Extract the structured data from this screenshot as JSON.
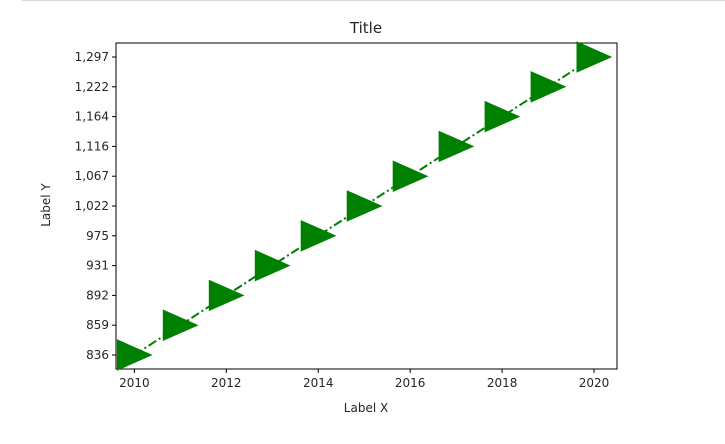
{
  "chart_data": {
    "type": "line",
    "title": "Title",
    "xlabel": "Label X",
    "ylabel": "Label Y",
    "x": [
      2010,
      2011,
      2012,
      2013,
      2014,
      2015,
      2016,
      2017,
      2018,
      2019,
      2020
    ],
    "series": [
      {
        "values": [
          836,
          859,
          892,
          931,
          975,
          1022,
          1067,
          1116,
          1164,
          1222,
          1297
        ],
        "color": "#008000",
        "line_style": "dash-dot",
        "marker": "triangle-right"
      }
    ],
    "xticks": [
      "2010",
      "2012",
      "2014",
      "2016",
      "2018",
      "2020"
    ],
    "yticks": [
      "836",
      "859",
      "892",
      "931",
      "975",
      "1,022",
      "1,067",
      "1,116",
      "1,164",
      "1,222",
      "1,297"
    ],
    "xlim": [
      2009.6,
      2020.5
    ],
    "y_axis": "categorical-index",
    "grid": false,
    "legend": "none"
  }
}
